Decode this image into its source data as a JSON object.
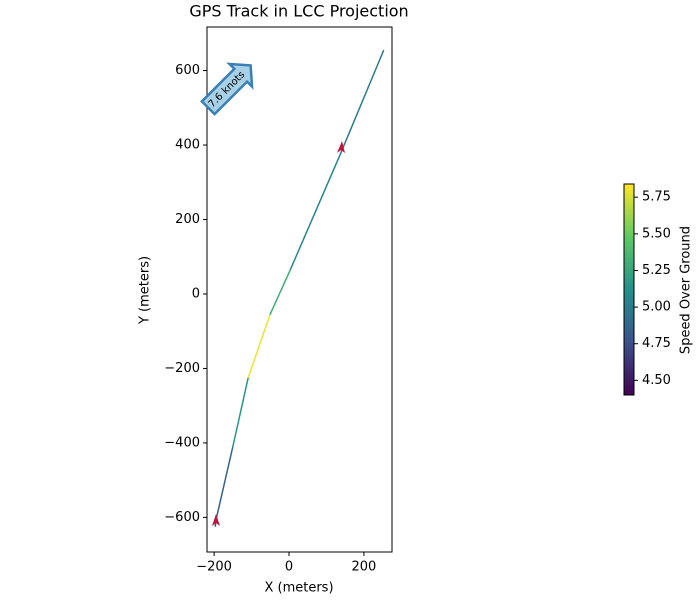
{
  "chart_data": {
    "type": "track",
    "title": "GPS Track in LCC Projection",
    "xlabel": "X (meters)",
    "ylabel": "Y (meters)",
    "x": [
      -197,
      -195,
      -150,
      -109,
      -51,
      3,
      136,
      253
    ],
    "y": [
      -625,
      -607,
      -410,
      -225,
      -56,
      64,
      373,
      655
    ],
    "speed": [
      4.75,
      4.85,
      5.15,
      5.8,
      5.3,
      5.05,
      5.0,
      5.0
    ],
    "colormap": "viridis",
    "xlim": [
      -219,
      275
    ],
    "ylim": [
      -693,
      717
    ],
    "xticks": [
      {
        "value": -200,
        "label": "−200"
      },
      0,
      200
    ],
    "yticks": [
      {
        "value": -600,
        "label": "−600"
      },
      {
        "value": -400,
        "label": "−400"
      },
      {
        "value": -200,
        "label": "−200"
      },
      0,
      200,
      400,
      600
    ],
    "colorbar": {
      "label": "Speed Over Ground",
      "lim": [
        4.4,
        5.84
      ],
      "ticks": [
        {
          "value": 4.5,
          "label": "4.50"
        },
        4.75,
        {
          "value": 5.0,
          "label": "5.00"
        },
        5.25,
        {
          "value": 5.5,
          "label": "5.50"
        },
        5.75
      ]
    },
    "annotation": "7.6 knots"
  }
}
